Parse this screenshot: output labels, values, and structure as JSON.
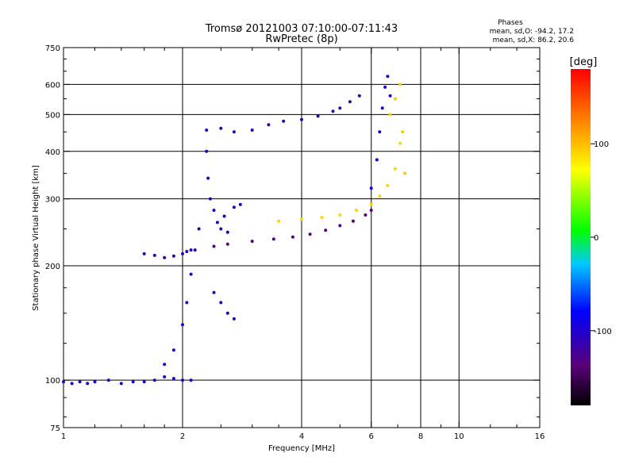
{
  "chart_data": {
    "type": "scatter",
    "title": "Tromsø 20121003 07:10:00-07:11:43",
    "subtitle": "RwPretec (8p)",
    "xlabel": "Frequency [MHz]",
    "ylabel": "Stationary phase Virtual Height [km]",
    "x_scale": "log",
    "y_scale": "log",
    "xlim": [
      1,
      16
    ],
    "ylim": [
      75,
      750
    ],
    "x_ticks": [
      1,
      2,
      4,
      6,
      8,
      10,
      16
    ],
    "x_tick_labels": [
      "1",
      "2",
      "4",
      "6",
      "8",
      "10",
      "16"
    ],
    "x_minor_ticks": [
      1.2,
      1.4,
      1.6,
      1.8,
      2.5,
      3,
      3.5,
      5,
      7,
      9,
      12,
      14
    ],
    "x_grid": [
      2,
      4,
      6,
      8,
      10
    ],
    "y_ticks": [
      75,
      100,
      200,
      300,
      400,
      500,
      600,
      750
    ],
    "y_tick_labels": [
      "75",
      "100",
      "200",
      "300",
      "400",
      "500",
      "600",
      "750"
    ],
    "y_minor_ticks": [
      80,
      90,
      125,
      150,
      175,
      250,
      350,
      450,
      550,
      650,
      700
    ],
    "y_grid": [
      100,
      200,
      300,
      400,
      500,
      600
    ],
    "grid": true,
    "legend": {
      "title": "Phases",
      "lines": [
        "mean, sd,O: -94.2, 17.2",
        "mean, sd,X:  86.2, 20.6"
      ],
      "position": "top-right"
    },
    "colorbar": {
      "label": "[deg]",
      "range": [
        -180,
        180
      ],
      "ticks": [
        100,
        0,
        -100
      ],
      "tick_labels": [
        "100",
        "0",
        "-100"
      ]
    },
    "series": [
      {
        "x": [
          1.0,
          1.05,
          1.1,
          1.15,
          1.2,
          1.3,
          1.4,
          1.5,
          1.6,
          1.7,
          1.8,
          1.9,
          2.0,
          2.1
        ],
        "y": [
          99,
          98,
          99,
          98,
          99,
          100,
          98,
          99,
          99,
          100,
          102,
          101,
          100,
          100
        ],
        "phase": -100
      },
      {
        "x": [
          1.6,
          1.7,
          1.8,
          1.9,
          2.0,
          2.05,
          2.1
        ],
        "y": [
          215,
          213,
          210,
          212,
          215,
          218,
          220
        ],
        "phase": -110
      },
      {
        "x": [
          1.8,
          1.9,
          2.0,
          2.05,
          2.1,
          2.15,
          2.2
        ],
        "y": [
          110,
          120,
          140,
          160,
          190,
          220,
          250
        ],
        "phase": -105
      },
      {
        "x": [
          2.3,
          2.32,
          2.35,
          2.4,
          2.45,
          2.5,
          2.55,
          2.6,
          2.7,
          2.8
        ],
        "y": [
          400,
          340,
          300,
          280,
          260,
          250,
          270,
          245,
          285,
          290
        ],
        "phase": -100
      },
      {
        "x": [
          2.4,
          2.5,
          2.6,
          2.7
        ],
        "y": [
          170,
          160,
          150,
          145
        ],
        "phase": -105
      },
      {
        "x": [
          2.3,
          2.5,
          2.7,
          3.0,
          3.3,
          3.6,
          4.0,
          4.4,
          4.8,
          5.0,
          5.3,
          5.6
        ],
        "y": [
          455,
          460,
          450,
          455,
          470,
          480,
          485,
          495,
          510,
          520,
          540,
          560
        ],
        "phase": -110
      },
      {
        "x": [
          2.4,
          2.6,
          3.0,
          3.4,
          3.8,
          4.2,
          4.6,
          5.0,
          5.4,
          5.8,
          6.0
        ],
        "y": [
          225,
          228,
          232,
          235,
          238,
          242,
          248,
          255,
          262,
          272,
          280
        ],
        "phase": -135
      },
      {
        "x": [
          3.5,
          4.0,
          4.5,
          5.0,
          5.5,
          6.0,
          6.3,
          6.6,
          6.9,
          7.1
        ],
        "y": [
          262,
          265,
          268,
          272,
          280,
          290,
          305,
          325,
          360,
          420
        ],
        "phase": 90
      },
      {
        "x": [
          6.0,
          6.2,
          6.3,
          6.4,
          6.5,
          6.6,
          6.7
        ],
        "y": [
          320,
          380,
          450,
          520,
          590,
          630,
          560
        ],
        "phase": -95
      },
      {
        "x": [
          6.7,
          6.9,
          7.1,
          7.2,
          7.3
        ],
        "y": [
          500,
          550,
          600,
          450,
          350
        ],
        "phase": 95
      }
    ]
  }
}
